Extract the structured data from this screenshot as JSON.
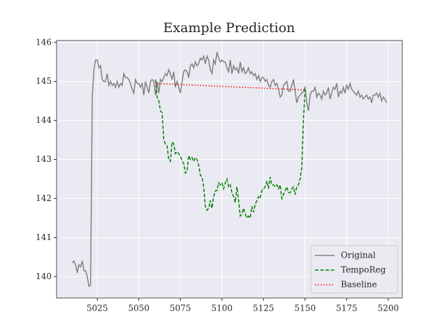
{
  "chart_data": {
    "type": "line",
    "title": "Example Prediction",
    "xlim": [
      5000.55,
      5208.45
    ],
    "xticks": [
      5025,
      5050,
      5075,
      5100,
      5125,
      5150,
      5175,
      5200
    ],
    "ylim": [
      139.45,
      146.05
    ],
    "yticks": [
      140,
      141,
      142,
      143,
      144,
      145,
      146
    ],
    "grid": true,
    "legend": "lower right",
    "series": [
      {
        "name": "Original",
        "color": "#808080",
        "linestyle": "solid",
        "x": [
          5010,
          5011,
          5012,
          5013,
          5014,
          5015,
          5016,
          5017,
          5018,
          5019,
          5020,
          5021,
          5022,
          5023,
          5024,
          5025,
          5026,
          5027,
          5028,
          5029,
          5030,
          5031,
          5032,
          5033,
          5034,
          5035,
          5036,
          5037,
          5038,
          5039,
          5040,
          5041,
          5042,
          5043,
          5044,
          5045,
          5046,
          5047,
          5048,
          5049,
          5050,
          5051,
          5052,
          5053,
          5054,
          5055,
          5056,
          5057,
          5058,
          5059,
          5060,
          5061,
          5062,
          5063,
          5064,
          5065,
          5066,
          5067,
          5068,
          5069,
          5070,
          5071,
          5072,
          5073,
          5074,
          5075,
          5076,
          5077,
          5078,
          5079,
          5080,
          5081,
          5082,
          5083,
          5084,
          5085,
          5086,
          5087,
          5088,
          5089,
          5090,
          5091,
          5092,
          5093,
          5094,
          5095,
          5096,
          5097,
          5098,
          5099,
          5100,
          5101,
          5102,
          5103,
          5104,
          5105,
          5106,
          5107,
          5108,
          5109,
          5110,
          5111,
          5112,
          5113,
          5114,
          5115,
          5116,
          5117,
          5118,
          5119,
          5120,
          5121,
          5122,
          5123,
          5124,
          5125,
          5126,
          5127,
          5128,
          5129,
          5130,
          5131,
          5132,
          5133,
          5134,
          5135,
          5136,
          5137,
          5138,
          5139,
          5140,
          5141,
          5142,
          5143,
          5144,
          5145,
          5146,
          5147,
          5148,
          5149,
          5150,
          5151,
          5152,
          5153,
          5154,
          5155,
          5156,
          5157,
          5158,
          5159,
          5160,
          5161,
          5162,
          5163,
          5164,
          5165,
          5166,
          5167,
          5168,
          5169,
          5170,
          5171,
          5172,
          5173,
          5174,
          5175,
          5176,
          5177,
          5178,
          5179,
          5180,
          5181,
          5182,
          5183,
          5184,
          5185,
          5186,
          5187,
          5188,
          5189,
          5190,
          5191,
          5192,
          5193,
          5194,
          5195,
          5196,
          5197,
          5198,
          5199
        ],
        "values": [
          140.35,
          140.4,
          140.3,
          140.1,
          140.3,
          140.25,
          140.4,
          140.15,
          140.15,
          140.0,
          139.75,
          139.78,
          144.6,
          145.3,
          145.55,
          145.55,
          145.35,
          145.4,
          145.05,
          145.0,
          145.0,
          145.2,
          144.9,
          145.0,
          144.9,
          144.95,
          144.85,
          145.0,
          144.85,
          144.95,
          144.9,
          145.2,
          145.1,
          145.1,
          145.05,
          144.95,
          144.8,
          144.7,
          145.05,
          144.95,
          144.95,
          144.85,
          144.95,
          144.65,
          145.0,
          144.85,
          144.7,
          145.0,
          145.05,
          145.0,
          144.65,
          145.0,
          144.7,
          145.05,
          145.0,
          145.1,
          145.2,
          145.15,
          145.3,
          145.2,
          145.05,
          145.25,
          144.85,
          145.0,
          144.85,
          144.7,
          145.0,
          145.25,
          145.3,
          145.25,
          145.1,
          145.4,
          145.45,
          145.35,
          145.5,
          145.4,
          145.45,
          145.6,
          145.55,
          145.65,
          145.45,
          145.65,
          145.55,
          145.3,
          145.2,
          145.55,
          145.45,
          145.75,
          145.6,
          145.5,
          145.55,
          145.5,
          145.5,
          145.35,
          145.25,
          145.55,
          145.2,
          145.4,
          145.3,
          145.35,
          145.2,
          145.5,
          145.25,
          145.35,
          145.2,
          145.25,
          145.35,
          145.2,
          145.25,
          145.15,
          145.2,
          145.05,
          145.15,
          145.0,
          145.1,
          145.1,
          145.0,
          145.05,
          144.9,
          144.85,
          145.0,
          145.05,
          144.9,
          144.95,
          144.8,
          144.6,
          144.65,
          144.9,
          144.95,
          145.0,
          144.75,
          144.75,
          144.9,
          145.05,
          144.75,
          144.45,
          144.6,
          144.65,
          144.7,
          144.75,
          144.85,
          144.45,
          144.25,
          144.65,
          144.75,
          144.75,
          144.85,
          144.6,
          144.7,
          144.65,
          144.55,
          144.75,
          144.65,
          144.7,
          144.85,
          144.55,
          144.7,
          144.85,
          144.8,
          144.95,
          144.6,
          144.75,
          144.7,
          144.85,
          144.7,
          144.9,
          144.8,
          144.95,
          144.8,
          144.75,
          144.7,
          144.65,
          144.75,
          144.6,
          144.65,
          144.55,
          144.6,
          144.65,
          144.55,
          144.6,
          144.45,
          144.65,
          144.65,
          144.7,
          144.6,
          144.7,
          144.5,
          144.6,
          144.55,
          144.45
        ]
      },
      {
        "name": "TempoReg",
        "color": "#008000",
        "linestyle": "dashed",
        "x": [
          5060,
          5061,
          5062,
          5063,
          5064,
          5065,
          5066,
          5067,
          5068,
          5069,
          5070,
          5071,
          5072,
          5073,
          5074,
          5075,
          5076,
          5077,
          5078,
          5079,
          5080,
          5081,
          5082,
          5083,
          5084,
          5085,
          5086,
          5087,
          5088,
          5089,
          5090,
          5091,
          5092,
          5093,
          5094,
          5095,
          5096,
          5097,
          5098,
          5099,
          5100,
          5101,
          5102,
          5103,
          5104,
          5105,
          5106,
          5107,
          5108,
          5109,
          5110,
          5111,
          5112,
          5113,
          5114,
          5115,
          5116,
          5117,
          5118,
          5119,
          5120,
          5121,
          5122,
          5123,
          5124,
          5125,
          5126,
          5127,
          5128,
          5129,
          5130,
          5131,
          5132,
          5133,
          5134,
          5135,
          5136,
          5137,
          5138,
          5139,
          5140,
          5141,
          5142,
          5143,
          5144,
          5145,
          5146,
          5147,
          5148,
          5149,
          5150
        ],
        "values": [
          145.05,
          144.6,
          144.5,
          144.25,
          144.2,
          143.5,
          143.4,
          143.35,
          143.0,
          142.95,
          143.45,
          143.4,
          143.15,
          143.2,
          143.15,
          143.1,
          142.95,
          142.9,
          142.65,
          142.7,
          143.1,
          143.0,
          143.05,
          142.95,
          143.05,
          143.0,
          142.85,
          142.6,
          142.55,
          142.3,
          141.8,
          141.7,
          141.75,
          141.95,
          141.75,
          142.05,
          142.2,
          142.2,
          142.4,
          142.35,
          142.4,
          142.25,
          142.4,
          142.5,
          142.3,
          142.35,
          142.15,
          142.05,
          141.9,
          142.3,
          141.95,
          141.55,
          141.6,
          141.75,
          141.6,
          141.5,
          141.55,
          141.5,
          141.8,
          141.65,
          141.85,
          141.95,
          142.05,
          142.0,
          142.2,
          142.25,
          142.3,
          142.45,
          142.25,
          142.55,
          142.35,
          142.35,
          142.3,
          142.35,
          142.25,
          142.35,
          142.0,
          142.1,
          142.2,
          142.3,
          142.15,
          142.15,
          142.25,
          142.3,
          142.1,
          142.3,
          142.35,
          142.5,
          142.8,
          144.0,
          144.8
        ]
      },
      {
        "name": "Baseline",
        "color": "#ff0000",
        "linestyle": "dotted",
        "x": [
          5060,
          5150
        ],
        "values": [
          144.95,
          144.78
        ]
      }
    ]
  }
}
